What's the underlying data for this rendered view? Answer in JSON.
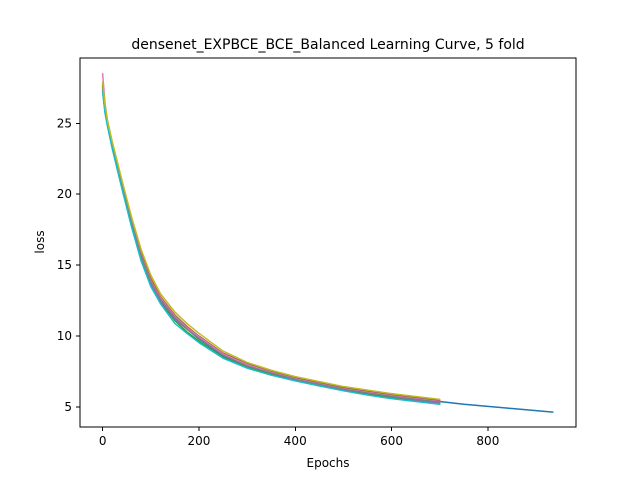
{
  "chart_data": {
    "type": "line",
    "title": "densenet_EXPBCE_BCE_Balanced Learning Curve, 5 fold",
    "xlabel": "Epochs",
    "ylabel": "loss",
    "xlim": [
      -47,
      983
    ],
    "ylim": [
      3.6,
      29.6
    ],
    "xticks": [
      0,
      200,
      400,
      600,
      800
    ],
    "yticks": [
      5,
      10,
      15,
      20,
      25
    ],
    "grid": false,
    "legend": "none",
    "series": [
      {
        "color": "#1f77b4",
        "x": [
          0,
          5,
          10,
          20,
          40,
          60,
          80,
          100,
          120,
          150,
          175,
          200,
          250,
          300,
          350,
          400,
          450,
          500,
          550,
          600,
          650,
          700,
          750,
          800,
          850,
          900,
          935
        ],
        "y": [
          27.5,
          26.0,
          25.0,
          23.4,
          20.6,
          18.0,
          15.6,
          13.8,
          12.6,
          11.3,
          10.5,
          9.8,
          8.6,
          7.9,
          7.4,
          6.95,
          6.6,
          6.25,
          6.0,
          5.75,
          5.55,
          5.4,
          5.2,
          5.05,
          4.9,
          4.75,
          4.65
        ]
      },
      {
        "color": "#ff7f0e",
        "x": [
          0,
          5,
          10,
          20,
          40,
          60,
          80,
          100,
          120,
          150,
          175,
          200,
          250,
          300,
          350,
          400,
          450,
          500,
          550,
          600,
          650,
          700
        ],
        "y": [
          27.8,
          26.2,
          25.1,
          23.6,
          20.8,
          18.2,
          15.9,
          14.1,
          12.8,
          11.5,
          10.7,
          10.0,
          8.8,
          8.05,
          7.55,
          7.1,
          6.75,
          6.4,
          6.15,
          5.9,
          5.7,
          5.5
        ]
      },
      {
        "color": "#2ca02c",
        "x": [
          0,
          5,
          10,
          20,
          40,
          60,
          80,
          100,
          120,
          150,
          175,
          200,
          250,
          300,
          350,
          400,
          450,
          500,
          550,
          600,
          650,
          700
        ],
        "y": [
          27.3,
          25.8,
          24.9,
          23.3,
          20.5,
          17.8,
          15.4,
          13.6,
          12.4,
          11.1,
          10.3,
          9.65,
          8.5,
          7.8,
          7.3,
          6.9,
          6.5,
          6.2,
          5.95,
          5.65,
          5.45,
          5.25
        ]
      },
      {
        "color": "#d62728",
        "x": [
          0,
          5,
          10,
          20,
          40,
          60,
          80,
          100,
          120,
          150,
          175,
          200,
          250,
          300,
          350,
          400,
          450,
          500,
          550,
          600,
          650,
          700
        ],
        "y": [
          27.6,
          26.1,
          25.0,
          23.5,
          20.7,
          18.1,
          15.7,
          13.9,
          12.7,
          11.4,
          10.6,
          9.9,
          8.7,
          8.0,
          7.45,
          7.0,
          6.65,
          6.3,
          6.05,
          5.8,
          5.6,
          5.4
        ]
      },
      {
        "color": "#9467bd",
        "x": [
          0,
          5,
          10,
          20,
          40,
          60,
          80,
          100,
          120,
          150,
          175,
          200,
          250,
          300,
          350,
          400,
          450,
          500,
          550,
          600,
          650,
          700
        ],
        "y": [
          27.4,
          25.9,
          24.9,
          23.4,
          20.5,
          17.9,
          15.5,
          13.7,
          12.5,
          11.2,
          10.5,
          9.9,
          8.75,
          7.95,
          7.4,
          6.95,
          6.6,
          6.25,
          6.0,
          5.75,
          5.5,
          5.3
        ]
      },
      {
        "color": "#8c564b",
        "x": [
          0,
          5,
          10,
          20,
          40,
          60,
          80,
          100,
          120,
          150,
          175,
          200,
          250,
          300,
          350,
          400,
          450,
          500,
          550,
          600,
          650,
          700
        ],
        "y": [
          27.7,
          26.1,
          25.1,
          23.6,
          20.8,
          18.2,
          15.8,
          14.0,
          12.75,
          11.45,
          10.65,
          10.0,
          8.8,
          8.05,
          7.5,
          7.05,
          6.7,
          6.35,
          6.1,
          5.85,
          5.65,
          5.45
        ]
      },
      {
        "color": "#e377c2",
        "x": [
          0,
          5,
          10,
          20,
          40,
          60,
          80,
          100,
          120,
          150,
          175,
          200,
          250,
          300,
          350,
          400,
          450,
          500,
          550,
          600,
          650,
          700
        ],
        "y": [
          28.5,
          26.4,
          25.2,
          23.6,
          20.7,
          18.1,
          15.7,
          13.9,
          12.7,
          11.4,
          10.6,
          9.95,
          8.75,
          8.0,
          7.45,
          7.0,
          6.65,
          6.3,
          6.05,
          5.8,
          5.6,
          5.4
        ]
      },
      {
        "color": "#7f7f7f",
        "x": [
          0,
          5,
          10,
          20,
          40,
          60,
          80,
          100,
          120,
          150,
          175,
          200,
          250,
          300,
          350,
          400,
          450,
          500,
          550,
          600,
          650,
          700
        ],
        "y": [
          27.5,
          26.0,
          25.0,
          23.5,
          20.6,
          18.0,
          15.6,
          13.8,
          12.6,
          11.3,
          10.5,
          9.85,
          8.65,
          7.9,
          7.4,
          6.95,
          6.6,
          6.25,
          6.0,
          5.75,
          5.55,
          5.35
        ]
      },
      {
        "color": "#17becf",
        "x": [
          0,
          5,
          10,
          20,
          40,
          60,
          80,
          100,
          120,
          150,
          175,
          200,
          250,
          300,
          350,
          400,
          450,
          500,
          550,
          600,
          650,
          700
        ],
        "y": [
          27.2,
          25.7,
          24.8,
          23.2,
          20.4,
          17.7,
          15.3,
          13.5,
          12.3,
          10.9,
          10.2,
          9.55,
          8.45,
          7.75,
          7.25,
          6.85,
          6.5,
          6.15,
          5.85,
          5.6,
          5.4,
          5.2
        ]
      },
      {
        "color": "#bcbd22",
        "x": [
          0,
          5,
          10,
          20,
          40,
          60,
          80,
          100,
          120,
          150,
          175,
          200,
          250,
          300,
          350,
          400,
          450,
          500,
          550,
          600,
          650,
          700
        ],
        "y": [
          27.9,
          26.3,
          25.2,
          23.7,
          21.0,
          18.4,
          16.1,
          14.3,
          13.0,
          11.7,
          10.9,
          10.2,
          8.95,
          8.15,
          7.6,
          7.15,
          6.8,
          6.45,
          6.2,
          5.95,
          5.75,
          5.55
        ]
      }
    ]
  }
}
